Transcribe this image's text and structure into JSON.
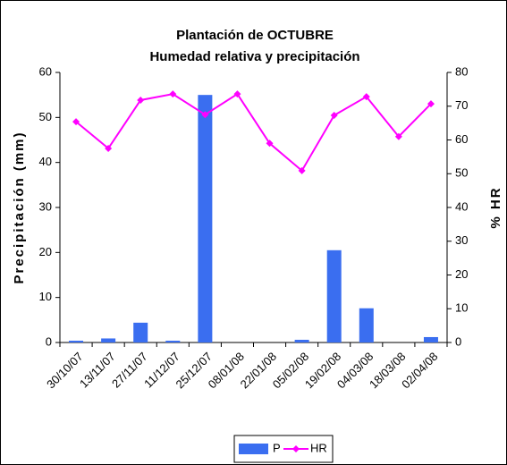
{
  "chart_data": {
    "type": "bar",
    "title": "Plantación de OCTUBRE",
    "subtitle": "Humedad relativa y precipitación",
    "y_label": "Precipitación (mm)",
    "y2_label": "% HR",
    "categories": [
      "30/10/07",
      "13/11/07",
      "27/11/07",
      "11/12/07",
      "25/12/07",
      "08/01/08",
      "22/01/08",
      "05/02/08",
      "19/02/08",
      "04/03/08",
      "18/03/08",
      "02/04/08"
    ],
    "series": [
      {
        "name": "P",
        "type": "bar",
        "color": "#3a6ef0",
        "values": [
          0.4,
          0.9,
          4.4,
          0.4,
          55,
          0,
          0,
          0.6,
          20.5,
          7.6,
          0,
          1.2
        ]
      },
      {
        "name": "HR",
        "type": "line",
        "axis": "y2",
        "color": "#ff00ff",
        "values": [
          65.4,
          57.5,
          71.8,
          73.6,
          67.5,
          73.6,
          59,
          50.9,
          67.3,
          72.8,
          61,
          70.7
        ]
      }
    ],
    "ylim": [
      0,
      60
    ],
    "yticks": [
      0,
      10,
      20,
      30,
      40,
      50,
      60
    ],
    "y2lim": [
      0,
      80
    ],
    "y2ticks": [
      0,
      10,
      20,
      30,
      40,
      50,
      60,
      70,
      80
    ],
    "grid": false,
    "legend": "bottom"
  }
}
